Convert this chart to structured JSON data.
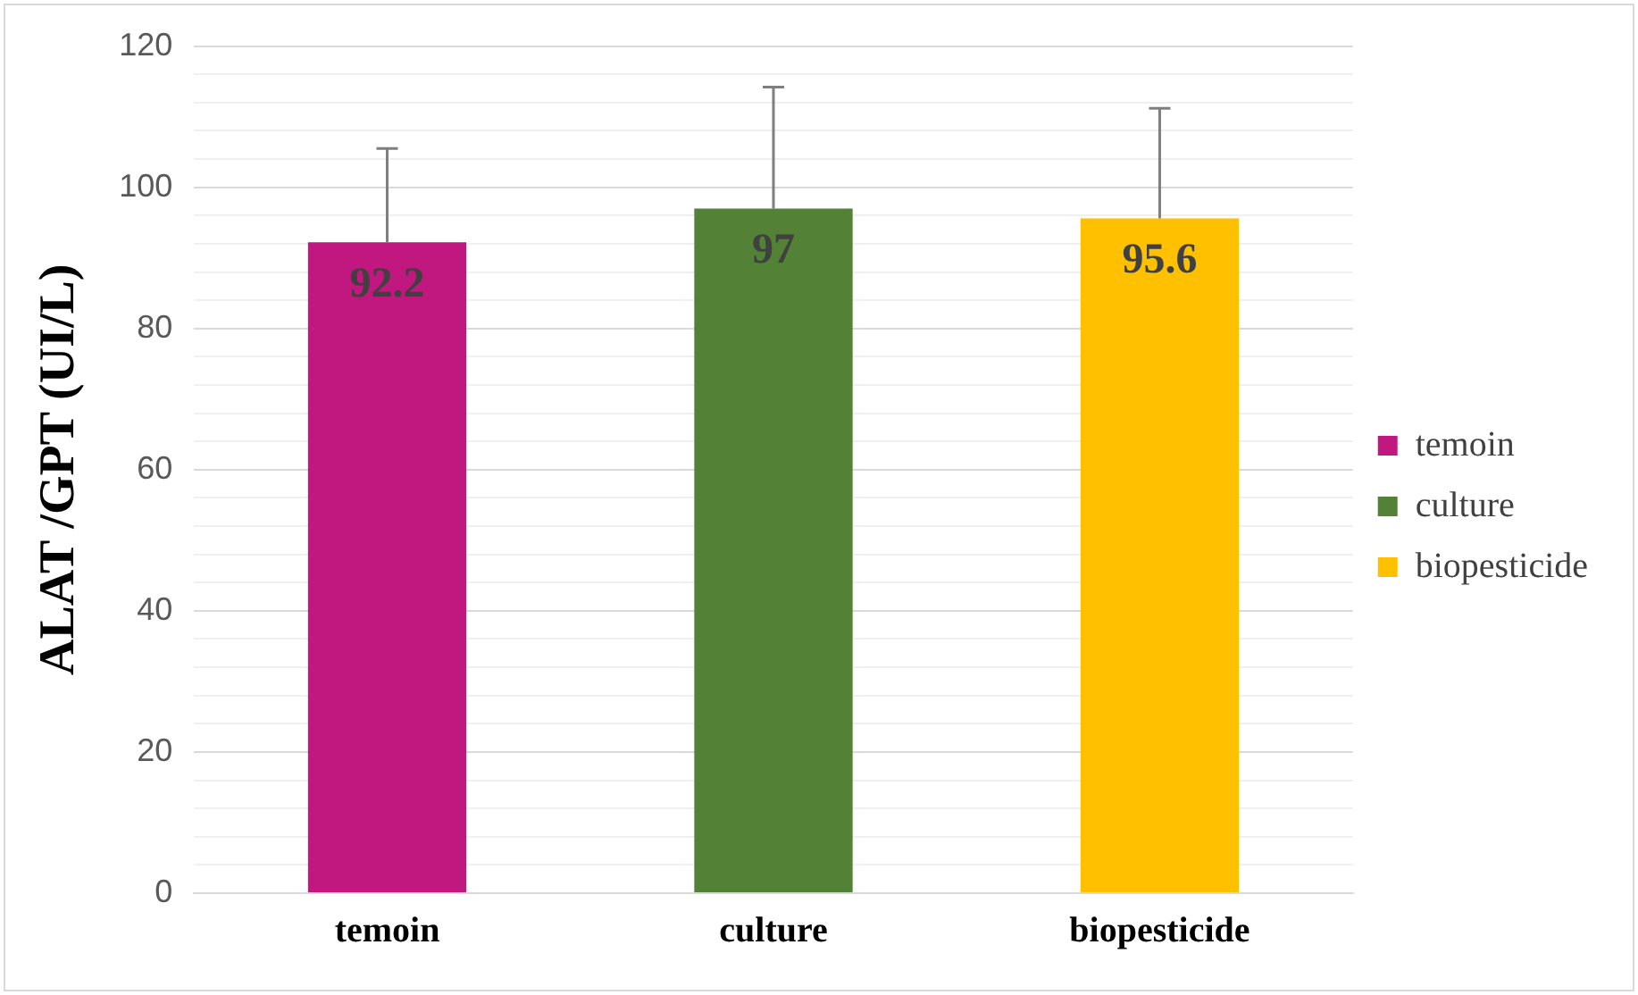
{
  "chart_data": {
    "type": "bar",
    "ylabel": "ALAT /GPT (UI/L)",
    "categories": [
      "temoin",
      "culture",
      "biopesticide"
    ],
    "series": [
      {
        "name": "temoin",
        "color": "#c0187f",
        "values": [
          92.2,
          null,
          null
        ],
        "errors": [
          [
            92.2,
            105.5
          ],
          null,
          null
        ]
      },
      {
        "name": "culture",
        "color": "#538135",
        "values": [
          null,
          97,
          null
        ],
        "errors": [
          null,
          [
            97,
            114.2
          ],
          null
        ]
      },
      {
        "name": "biopesticide",
        "color": "#ffc000",
        "values": [
          null,
          null,
          95.6
        ],
        "errors": [
          null,
          null,
          [
            95.6,
            111.2
          ]
        ]
      }
    ],
    "ylim": [
      0,
      120
    ],
    "yticks": [
      0,
      {
        "value": 4,
        "label": null
      },
      {
        "value": 8,
        "label": null
      },
      {
        "value": 12,
        "label": null
      },
      {
        "value": 16,
        "label": null
      },
      20,
      {
        "value": 24,
        "label": null
      },
      {
        "value": 28,
        "label": null
      },
      {
        "value": 32,
        "label": null
      },
      {
        "value": 36,
        "label": null
      },
      40,
      {
        "value": 44,
        "label": null
      },
      {
        "value": 48,
        "label": null
      },
      {
        "value": 52,
        "label": null
      },
      {
        "value": 56,
        "label": null
      },
      60,
      {
        "value": 64,
        "label": null
      },
      {
        "value": 68,
        "label": null
      },
      {
        "value": 72,
        "label": null
      },
      {
        "value": 76,
        "label": null
      },
      80,
      {
        "value": 84,
        "label": null
      },
      {
        "value": 88,
        "label": null
      },
      {
        "value": 92,
        "label": null
      },
      {
        "value": 96,
        "label": null
      },
      100,
      {
        "value": 104,
        "label": null
      },
      {
        "value": 108,
        "label": null
      },
      {
        "value": 112,
        "label": null
      },
      {
        "value": 116,
        "label": null
      },
      120
    ],
    "grid": "y",
    "legend": "right",
    "data_labels": true
  }
}
